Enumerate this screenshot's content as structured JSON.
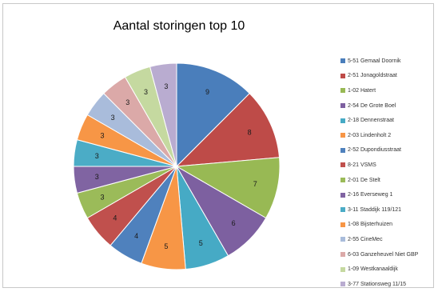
{
  "chart_data": {
    "type": "pie",
    "title": "Aantal storingen top 10",
    "legend_position": "right",
    "slices": [
      {
        "label": "5-51 Gemaal Doornik",
        "value": 9,
        "color": "#4a7ebb"
      },
      {
        "label": "2-51 Jonagoldstraat",
        "value": 8,
        "color": "#be4b48"
      },
      {
        "label": "1-02 Hatert",
        "value": 7,
        "color": "#98b954"
      },
      {
        "label": "2-54 De Grote Boel",
        "value": 6,
        "color": "#7d60a0"
      },
      {
        "label": "2-18 Dennenstraat",
        "value": 5,
        "color": "#46aac5"
      },
      {
        "label": "2-03 Lindenholt 2",
        "value": 5,
        "color": "#f79646"
      },
      {
        "label": "2-52 Dupondiusstraat",
        "value": 4,
        "color": "#4f81bd"
      },
      {
        "label": "8-21 VSMS",
        "value": 4,
        "color": "#c0504d"
      },
      {
        "label": "2-01 De Stelt",
        "value": 3,
        "color": "#9bbb59"
      },
      {
        "label": "2-16 Everseweg 1",
        "value": 3,
        "color": "#8064a2"
      },
      {
        "label": "3-11 Staddijk 119/121",
        "value": 3,
        "color": "#4bacc6"
      },
      {
        "label": "1-08 Bijsterhuizen",
        "value": 3,
        "color": "#f79646"
      },
      {
        "label": "2-55 CineMec",
        "value": 3,
        "color": "#a9bcdb"
      },
      {
        "label": "6-03 Ganzeheuvel Niet GBP",
        "value": 3,
        "color": "#dba9a8"
      },
      {
        "label": "1-09 Westkanaaldijk",
        "value": 3,
        "color": "#c5d9a0"
      },
      {
        "label": "3-77 Stationsweg 11/15",
        "value": 3,
        "color": "#b9acd0"
      }
    ]
  }
}
